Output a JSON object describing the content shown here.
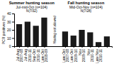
{
  "chart_data": {
    "type": "bar",
    "ylabel": "PCR positives (%)",
    "color": "#1a1a1a",
    "ylim": [
      0,
      40
    ],
    "yticks": [
      0,
      10,
      20,
      30,
      40
    ],
    "annotation": "Hunting not allowed",
    "groups": [
      {
        "titles": [
          "Summer hunting season",
          "Jul-mid-Oct (n=104)",
          "N(7/32)"
        ],
        "categories": [
          "Jul-Aug\n2007-08",
          "Jul-Aug\n2010-11",
          "Sep-Oct\n2010-11",
          "Late Oct\n2008-09"
        ],
        "values": [
          27,
          30,
          25,
          35
        ]
      },
      {
        "titles": [
          "Fall hunting season",
          "Mid-Oct-Nov (n=104)",
          "N(7/28)"
        ],
        "categories": [
          "Late Oct\n2007-08",
          "Late Oct\n2009-10",
          "Nov\n2009-10",
          "Nov\n2010-11",
          "Late Nov\n2010-11",
          null
        ],
        "values": [
          18,
          13,
          20,
          17,
          5,
          12
        ]
      }
    ]
  }
}
